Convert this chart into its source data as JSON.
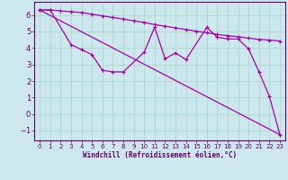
{
  "xlabel": "Windchill (Refroidissement éolien,°C)",
  "bg_color": "#cce8ee",
  "line_color": "#aa00aa",
  "grid_color": "#aaddcc",
  "xlim": [
    -0.5,
    23.5
  ],
  "ylim": [
    -1.6,
    6.8
  ],
  "yticks": [
    -1,
    0,
    1,
    2,
    3,
    4,
    5,
    6
  ],
  "xticks": [
    0,
    1,
    2,
    3,
    4,
    5,
    6,
    7,
    8,
    9,
    10,
    11,
    12,
    13,
    14,
    15,
    16,
    17,
    18,
    19,
    20,
    21,
    22,
    23
  ],
  "line1_x": [
    0,
    1,
    2,
    3,
    4,
    5,
    6,
    7,
    8,
    9,
    10,
    11,
    12,
    13,
    14,
    15,
    16,
    17,
    18,
    19,
    20,
    21,
    22,
    23
  ],
  "line1_y": [
    6.3,
    6.3,
    6.25,
    6.2,
    6.15,
    6.05,
    5.95,
    5.85,
    5.75,
    5.65,
    5.55,
    5.42,
    5.32,
    5.22,
    5.12,
    5.02,
    4.92,
    4.82,
    4.75,
    4.68,
    4.6,
    4.52,
    4.48,
    4.42
  ],
  "line2_x": [
    0,
    1,
    3,
    4,
    5,
    6,
    7,
    8,
    10,
    11,
    12,
    13,
    14,
    16,
    17,
    18,
    19,
    20,
    21,
    22,
    23
  ],
  "line2_y": [
    6.3,
    6.3,
    4.2,
    3.9,
    3.6,
    2.65,
    2.55,
    2.55,
    3.75,
    5.25,
    3.35,
    3.7,
    3.3,
    5.25,
    4.65,
    4.55,
    4.55,
    3.95,
    2.55,
    1.05,
    -1.25
  ],
  "line3_x": [
    0,
    23
  ],
  "line3_y": [
    6.3,
    -1.25
  ]
}
